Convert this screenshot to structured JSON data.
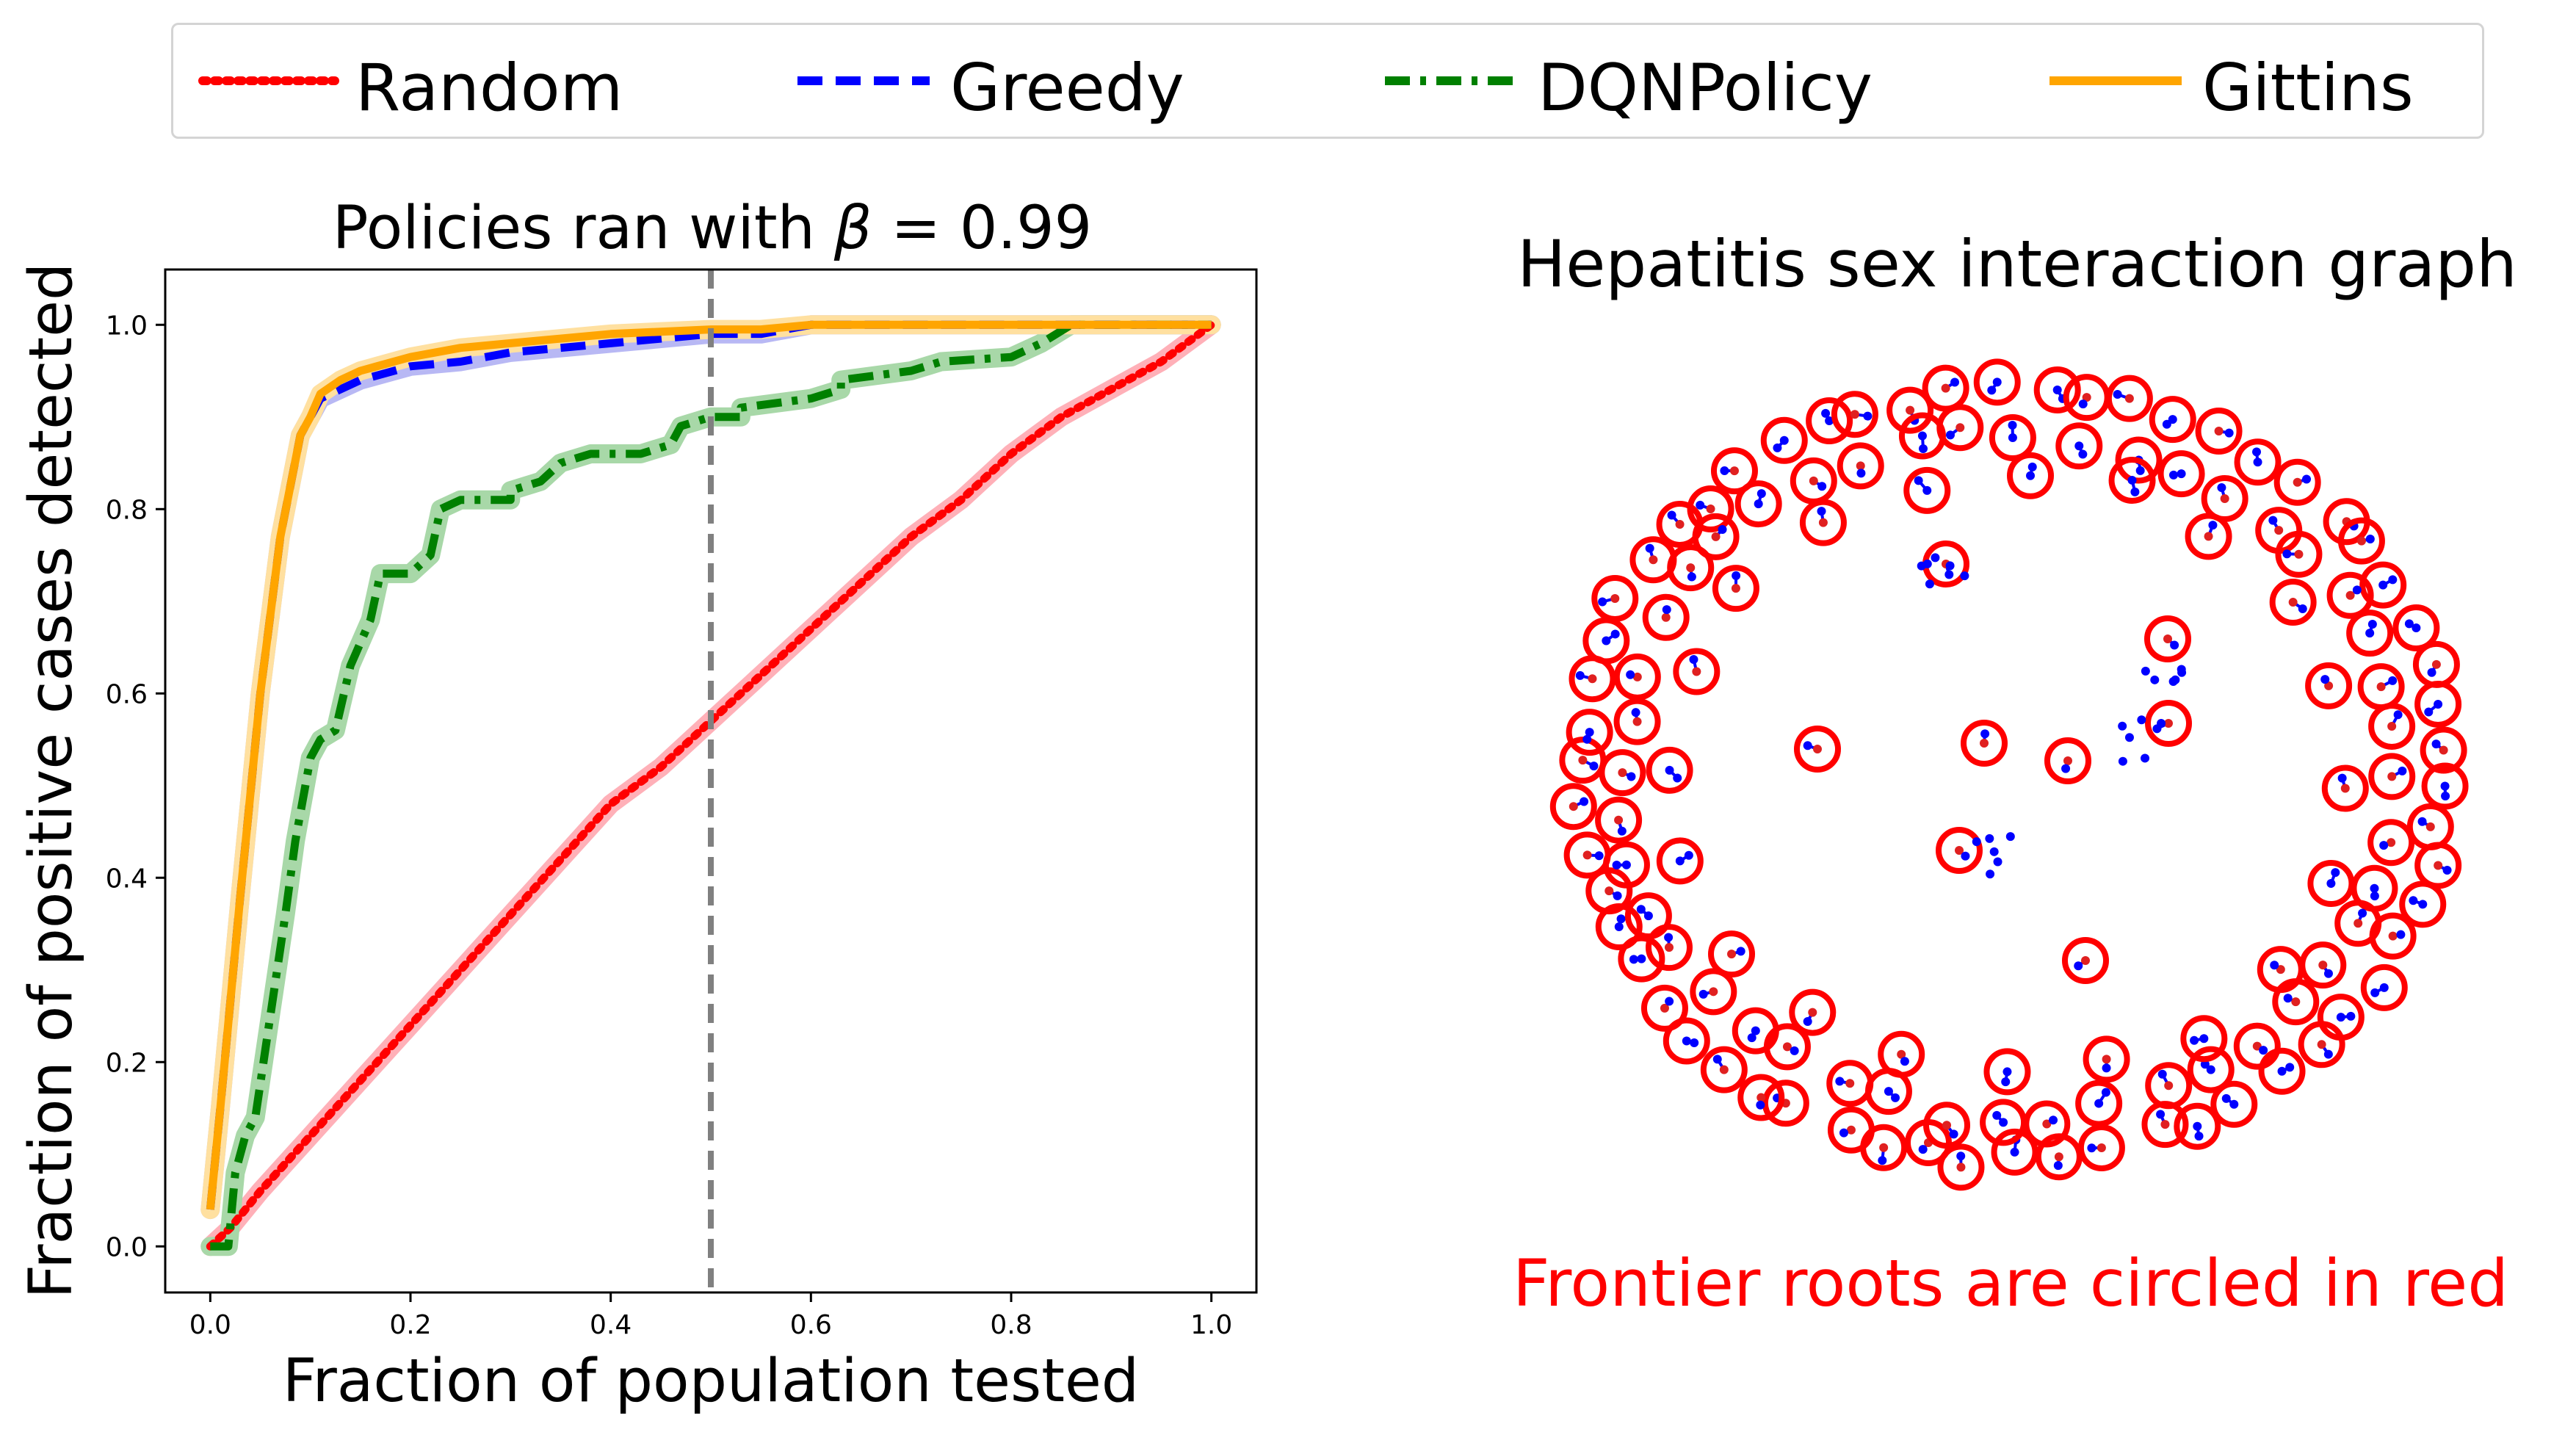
{
  "legend": {
    "items": [
      {
        "label": "Random",
        "color": "#ff0000",
        "style": "dotted"
      },
      {
        "label": "Greedy",
        "color": "#0000ff",
        "style": "dashed"
      },
      {
        "label": "DQNPolicy",
        "color": "#008000",
        "style": "dashdot"
      },
      {
        "label": "Gittins",
        "color": "#ffa500",
        "style": "solid"
      }
    ]
  },
  "chart_data": [
    {
      "type": "line",
      "title_prefix": "Policies ran with ",
      "title_symbol": "β",
      "title_suffix": " =  0.99",
      "xlabel": "Fraction of population tested",
      "ylabel": "Fraction of positive cases detected",
      "xlim": [
        -0.045,
        1.045
      ],
      "ylim": [
        -0.05,
        1.06
      ],
      "xticks": [
        0.0,
        0.2,
        0.4,
        0.6,
        0.8,
        1.0
      ],
      "xtick_labels": [
        "0.0",
        "0.2",
        "0.4",
        "0.6",
        "0.8",
        "1.0"
      ],
      "yticks": [
        0.0,
        0.2,
        0.4,
        0.6,
        0.8,
        1.0
      ],
      "ytick_labels": [
        "0.0",
        "0.2",
        "0.4",
        "0.6",
        "0.8",
        "1.0"
      ],
      "vline_x": 0.5,
      "vline_color": "#808080",
      "grid": false,
      "series": [
        {
          "name": "Random",
          "color": "#ff0000",
          "band_color": "#ffb0b8",
          "x": [
            0.0,
            0.02,
            0.05,
            0.1,
            0.15,
            0.2,
            0.25,
            0.3,
            0.35,
            0.4,
            0.45,
            0.5,
            0.55,
            0.6,
            0.65,
            0.7,
            0.75,
            0.8,
            0.85,
            0.9,
            0.95,
            1.0
          ],
          "y": [
            0.0,
            0.02,
            0.06,
            0.12,
            0.18,
            0.24,
            0.3,
            0.36,
            0.42,
            0.48,
            0.52,
            0.57,
            0.62,
            0.67,
            0.72,
            0.77,
            0.81,
            0.86,
            0.9,
            0.93,
            0.96,
            1.0
          ]
        },
        {
          "name": "DQNPolicy",
          "color": "#008000",
          "band_color": "#a8d8a8",
          "x": [
            0.0,
            0.01,
            0.018,
            0.025,
            0.035,
            0.045,
            0.06,
            0.075,
            0.085,
            0.1,
            0.11,
            0.125,
            0.14,
            0.16,
            0.17,
            0.2,
            0.22,
            0.23,
            0.25,
            0.3,
            0.3,
            0.33,
            0.35,
            0.38,
            0.39,
            0.43,
            0.46,
            0.47,
            0.5,
            0.53,
            0.53,
            0.6,
            0.63,
            0.63,
            0.7,
            0.73,
            0.8,
            0.83,
            0.86,
            0.9,
            1.0
          ],
          "y": [
            0.0,
            0.0,
            0.0,
            0.08,
            0.12,
            0.14,
            0.25,
            0.36,
            0.44,
            0.53,
            0.55,
            0.56,
            0.63,
            0.68,
            0.73,
            0.73,
            0.75,
            0.8,
            0.81,
            0.81,
            0.82,
            0.83,
            0.85,
            0.86,
            0.86,
            0.86,
            0.87,
            0.89,
            0.9,
            0.9,
            0.91,
            0.92,
            0.93,
            0.94,
            0.95,
            0.96,
            0.965,
            0.98,
            1.0,
            1.0,
            1.0
          ]
        },
        {
          "name": "Greedy",
          "color": "#0000ff",
          "band_color": "#b8b8f4",
          "x": [
            0.0,
            0.01,
            0.03,
            0.05,
            0.07,
            0.09,
            0.1,
            0.11,
            0.13,
            0.15,
            0.2,
            0.25,
            0.3,
            0.35,
            0.4,
            0.5,
            0.55,
            0.6,
            0.7,
            0.8,
            0.9,
            1.0
          ],
          "y": [
            0.04,
            0.15,
            0.38,
            0.6,
            0.77,
            0.88,
            0.9,
            0.92,
            0.93,
            0.94,
            0.955,
            0.96,
            0.97,
            0.975,
            0.98,
            0.99,
            0.99,
            1.0,
            1.0,
            1.0,
            1.0,
            1.0
          ]
        },
        {
          "name": "Gittins",
          "color": "#ffa500",
          "band_color": "#ffe0a0",
          "x": [
            0.0,
            0.01,
            0.03,
            0.05,
            0.07,
            0.09,
            0.1,
            0.11,
            0.13,
            0.15,
            0.2,
            0.25,
            0.3,
            0.35,
            0.4,
            0.5,
            0.55,
            0.6,
            0.7,
            0.8,
            0.9,
            1.0
          ],
          "y": [
            0.04,
            0.15,
            0.38,
            0.6,
            0.77,
            0.88,
            0.9,
            0.925,
            0.94,
            0.95,
            0.965,
            0.975,
            0.98,
            0.985,
            0.99,
            0.995,
            0.995,
            1.0,
            1.0,
            1.0,
            1.0,
            1.0
          ]
        }
      ]
    }
  ],
  "graph": {
    "title": "Hepatitis sex interaction graph",
    "caption": "Frontier roots are circled in red",
    "caption_color": "#ff0000",
    "circle_color": "#ff0000",
    "node_color": "#0000ff",
    "root_count": 132
  }
}
